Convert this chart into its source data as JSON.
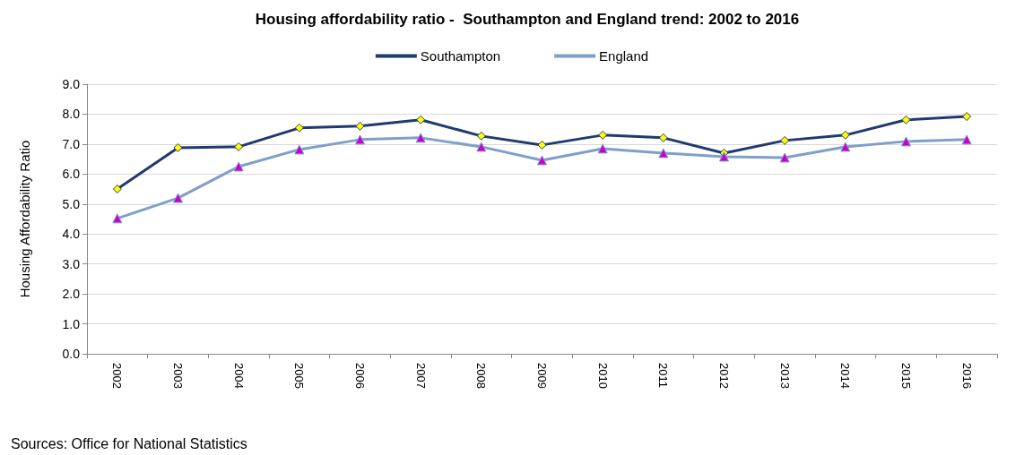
{
  "chart_data": {
    "type": "line",
    "title": "Housing affordability ratio -  Southampton and England trend: 2002 to 2016",
    "ylabel": "Housing Affordability Ratio",
    "categories": [
      "2002",
      "2003",
      "2004",
      "2005",
      "2006",
      "2007",
      "2008",
      "2009",
      "2010",
      "2011",
      "2012",
      "2013",
      "2014",
      "2015",
      "2016"
    ],
    "series": [
      {
        "name": "Southampton",
        "color": "#1f3a6e",
        "marker": "diamond",
        "values": [
          5.5,
          6.88,
          6.91,
          7.54,
          7.6,
          7.81,
          7.27,
          6.97,
          7.3,
          7.21,
          6.7,
          7.12,
          7.3,
          7.81,
          7.92
        ]
      },
      {
        "name": "England",
        "color": "#7f9fcb",
        "marker": "triangle",
        "values": [
          4.52,
          5.2,
          6.25,
          6.82,
          7.15,
          7.21,
          6.91,
          6.46,
          6.85,
          6.7,
          6.58,
          6.55,
          6.91,
          7.09,
          7.15
        ]
      }
    ],
    "ylim": [
      0,
      9
    ],
    "yticks": [
      {
        "value": 0,
        "label": "0.0"
      },
      {
        "value": 1,
        "label": "1.0"
      },
      {
        "value": 2,
        "label": "2.0"
      },
      {
        "value": 3,
        "label": "3.0"
      },
      {
        "value": 4,
        "label": "4.0"
      },
      {
        "value": 5,
        "label": "5.0"
      },
      {
        "value": 6,
        "label": "6.0"
      },
      {
        "value": 7,
        "label": "7.0"
      },
      {
        "value": 8,
        "label": "8.0"
      },
      {
        "value": 9,
        "label": "9.0"
      }
    ],
    "grid": "y",
    "legend": "top",
    "line_style": "solid",
    "annotations": [
      "Sources: Office for National Statistics"
    ]
  }
}
